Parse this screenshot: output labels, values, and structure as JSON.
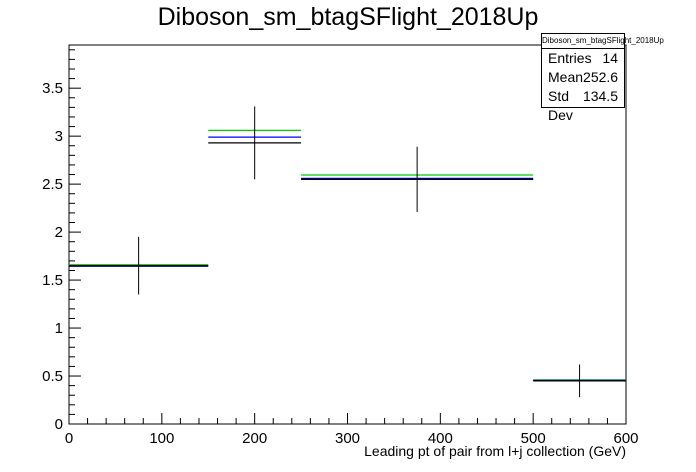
{
  "chart_data": {
    "type": "histogram",
    "title": "Diboson_sm_btagSFlight_2018Up",
    "xlabel": "Leading pt of pair from l+j collection (GeV)",
    "ylabel": "",
    "xlim": [
      0,
      600
    ],
    "ylim": [
      0,
      3.95
    ],
    "x_ticks": [
      0,
      100,
      200,
      300,
      400,
      500,
      600
    ],
    "x_tick_labels": [
      "0",
      "100",
      "200",
      "300",
      "400",
      "500",
      "600"
    ],
    "y_ticks": [
      0,
      0.5,
      1,
      1.5,
      2,
      2.5,
      3,
      3.5
    ],
    "y_tick_labels": [
      "0",
      "0.5",
      "1",
      "1.5",
      "2",
      "2.5",
      "3",
      "3.5"
    ],
    "bins": [
      [
        0,
        150
      ],
      [
        150,
        250
      ],
      [
        250,
        500
      ],
      [
        500,
        600
      ]
    ],
    "series": [
      {
        "color": "#000000",
        "values": [
          1.65,
          2.93,
          2.55,
          0.45
        ],
        "errors": [
          0.3,
          0.38,
          0.34,
          0.17
        ],
        "style": "error-crosses"
      },
      {
        "color": "#0000ff",
        "values": [
          1.645,
          2.99,
          2.56,
          0.455
        ],
        "style": "step"
      },
      {
        "color": "#00cc00",
        "values": [
          1.66,
          3.06,
          2.595,
          0.46
        ],
        "style": "step"
      }
    ],
    "grid": false,
    "legend": "none"
  },
  "stats": {
    "name": "Diboson_sm_btagSFlight_2018Up",
    "rows": [
      {
        "label": "Entries",
        "value": "14"
      },
      {
        "label": "Mean",
        "value": "252.6"
      },
      {
        "label": "Std Dev",
        "value": "134.5"
      }
    ]
  }
}
